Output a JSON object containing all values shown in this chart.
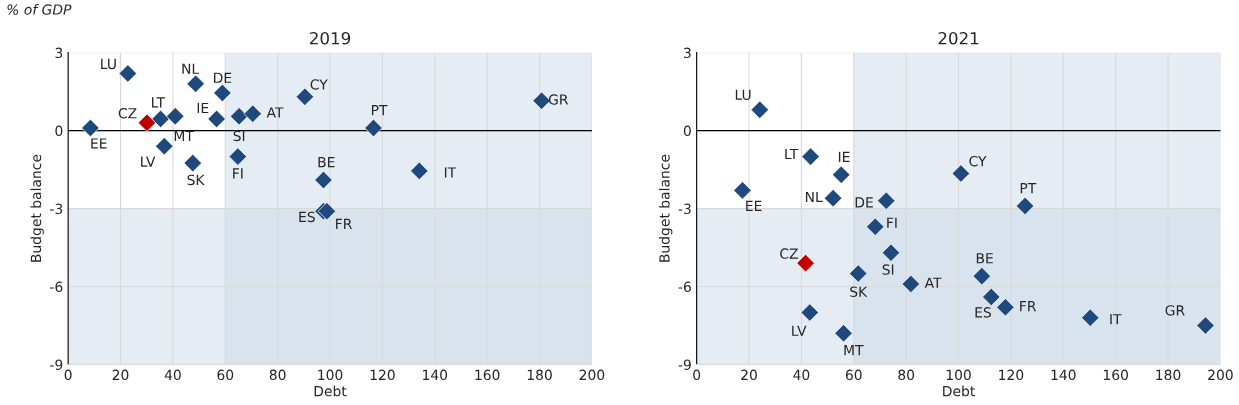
{
  "chart_data": [
    {
      "type": "scatter",
      "title": "2019",
      "xlabel": "Debt",
      "ylabel": "Budget balance",
      "marker": "diamond",
      "grid": true,
      "legend": false,
      "xlim": [
        0,
        200
      ],
      "xticks": [
        0,
        20,
        40,
        60,
        80,
        100,
        120,
        140,
        160,
        180,
        200
      ],
      "ylim": [
        -9,
        3
      ],
      "yticks": [
        -9,
        -6,
        -3,
        0,
        3
      ],
      "bands": [
        {
          "axis": "x",
          "from": 60,
          "to": 200,
          "color": "#ccd9e8"
        },
        {
          "axis": "y",
          "from": -9,
          "to": -3,
          "color": "#ccd9e8"
        }
      ],
      "ref_lines": [
        {
          "axis": "y",
          "value": 0,
          "color": "#000000"
        }
      ],
      "series": [
        {
          "x": [
            22.8,
            48.7,
            58.9,
            90.4,
            180.8,
            8.5,
            30.1,
            35.3,
            40.9,
            56.7,
            65.3,
            70.5,
            116.6,
            36.7,
            47.6,
            64.8,
            97.5,
            134.1,
            97.5,
            98.8
          ],
          "values": [
            2.2,
            1.8,
            1.45,
            1.3,
            1.15,
            0.1,
            0.3,
            0.45,
            0.55,
            0.45,
            0.55,
            0.65,
            0.1,
            -0.6,
            -1.25,
            -1.0,
            -1.9,
            -1.55,
            -3.1,
            -3.1
          ],
          "colors": [
            "#1f497d",
            "#1f497d",
            "#1f497d",
            "#1f497d",
            "#1f497d",
            "#1f497d",
            "#c00000",
            "#1f497d",
            "#1f497d",
            "#1f497d",
            "#1f497d",
            "#1f497d",
            "#1f497d",
            "#1f497d",
            "#1f497d",
            "#1f497d",
            "#1f497d",
            "#1f497d",
            "#1f497d",
            "#1f497d"
          ]
        }
      ],
      "annotations": [
        "% of GDP",
        {
          "text": "LU",
          "x": 22.8,
          "y": 2.2
        },
        {
          "text": "NL",
          "x": 48.7,
          "y": 1.8
        },
        {
          "text": "DE",
          "x": 58.9,
          "y": 1.45
        },
        {
          "text": "CY",
          "x": 90.4,
          "y": 1.3
        },
        {
          "text": "GR",
          "x": 180.8,
          "y": 1.15
        },
        {
          "text": "EE",
          "x": 8.5,
          "y": 0.1
        },
        {
          "text": "CZ",
          "x": 30.1,
          "y": 0.3
        },
        {
          "text": "LT",
          "x": 35.3,
          "y": 0.45
        },
        {
          "text": "MT",
          "x": 40.9,
          "y": 0.55
        },
        {
          "text": "IE",
          "x": 56.7,
          "y": 0.45
        },
        {
          "text": "SI",
          "x": 65.3,
          "y": 0.55
        },
        {
          "text": "AT",
          "x": 70.5,
          "y": 0.65
        },
        {
          "text": "PT",
          "x": 116.6,
          "y": 0.1
        },
        {
          "text": "LV",
          "x": 36.7,
          "y": -0.6
        },
        {
          "text": "SK",
          "x": 47.6,
          "y": -1.25
        },
        {
          "text": "FI",
          "x": 64.8,
          "y": -1.0
        },
        {
          "text": "BE",
          "x": 97.5,
          "y": -1.9
        },
        {
          "text": "IT",
          "x": 134.1,
          "y": -1.55
        },
        {
          "text": "ES",
          "x": 97.5,
          "y": -3.1
        },
        {
          "text": "FR",
          "x": 98.8,
          "y": -3.1
        }
      ]
    },
    {
      "type": "scatter",
      "title": "2021",
      "xlabel": "Debt",
      "ylabel": "Budget balance",
      "marker": "diamond",
      "grid": true,
      "legend": false,
      "xlim": [
        0,
        200
      ],
      "xticks": [
        0,
        20,
        40,
        60,
        80,
        100,
        120,
        140,
        160,
        180,
        200
      ],
      "ylim": [
        -9,
        3
      ],
      "yticks": [
        -9,
        -6,
        -3,
        0,
        3
      ],
      "bands": [
        {
          "axis": "x",
          "from": 60,
          "to": 200,
          "color": "#ccd9e8"
        },
        {
          "axis": "y",
          "from": -9,
          "to": -3,
          "color": "#ccd9e8"
        }
      ],
      "ref_lines": [
        {
          "axis": "y",
          "value": 0,
          "color": "#000000"
        }
      ],
      "series": [
        {
          "x": [
            24.1,
            43.5,
            55.2,
            100.9,
            17.5,
            52.1,
            72.4,
            125.4,
            68.2,
            74.2,
            41.6,
            61.7,
            81.8,
            108.9,
            112.5,
            117.9,
            150.3,
            194.3,
            43.2,
            56.1
          ],
          "values": [
            0.8,
            -1.0,
            -1.7,
            -1.65,
            -2.3,
            -2.6,
            -2.7,
            -2.9,
            -3.7,
            -4.7,
            -5.1,
            -5.5,
            -5.9,
            -5.6,
            -6.4,
            -6.8,
            -7.2,
            -7.5,
            -7.0,
            -7.8
          ],
          "colors": [
            "#1f497d",
            "#1f497d",
            "#1f497d",
            "#1f497d",
            "#1f497d",
            "#1f497d",
            "#1f497d",
            "#1f497d",
            "#1f497d",
            "#1f497d",
            "#c00000",
            "#1f497d",
            "#1f497d",
            "#1f497d",
            "#1f497d",
            "#1f497d",
            "#1f497d",
            "#1f497d",
            "#1f497d",
            "#1f497d"
          ]
        }
      ],
      "annotations": [
        {
          "text": "LU",
          "x": 24.1,
          "y": 0.8
        },
        {
          "text": "LT",
          "x": 43.5,
          "y": -1.0
        },
        {
          "text": "IE",
          "x": 55.2,
          "y": -1.7
        },
        {
          "text": "CY",
          "x": 100.9,
          "y": -1.65
        },
        {
          "text": "EE",
          "x": 17.5,
          "y": -2.3
        },
        {
          "text": "NL",
          "x": 52.1,
          "y": -2.6
        },
        {
          "text": "DE",
          "x": 72.4,
          "y": -2.7
        },
        {
          "text": "PT",
          "x": 125.4,
          "y": -2.9
        },
        {
          "text": "FI",
          "x": 68.2,
          "y": -3.7
        },
        {
          "text": "SI",
          "x": 74.2,
          "y": -4.7
        },
        {
          "text": "CZ",
          "x": 41.6,
          "y": -5.1
        },
        {
          "text": "SK",
          "x": 61.7,
          "y": -5.5
        },
        {
          "text": "AT",
          "x": 81.8,
          "y": -5.9
        },
        {
          "text": "BE",
          "x": 108.9,
          "y": -5.6
        },
        {
          "text": "ES",
          "x": 112.5,
          "y": -6.4
        },
        {
          "text": "FR",
          "x": 117.9,
          "y": -6.8
        },
        {
          "text": "IT",
          "x": 150.3,
          "y": -7.2
        },
        {
          "text": "GR",
          "x": 194.3,
          "y": -7.5
        },
        {
          "text": "LV",
          "x": 43.2,
          "y": -7.0
        },
        {
          "text": "MT",
          "x": 56.1,
          "y": -7.8
        }
      ]
    }
  ]
}
